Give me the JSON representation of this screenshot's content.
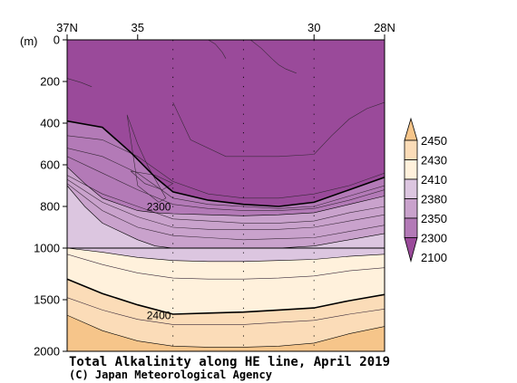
{
  "chart_data": {
    "type": "heatmap",
    "title": "Total Alkalinity along HE line, April 2019",
    "credit": "(C) Japan Meteorological Agency",
    "yunit": "(m)",
    "xlim": [
      37,
      28
    ],
    "x_ticks": [
      "37N",
      "35",
      "30",
      "28N"
    ],
    "x_tick_values": [
      37,
      35,
      30,
      28
    ],
    "station_x": [
      34.0,
      32.0,
      30.0
    ],
    "ylim": [
      0,
      2000
    ],
    "y_ticks": [
      0,
      200,
      400,
      600,
      800,
      1000,
      1500,
      2000
    ],
    "y_ticks_upper": [
      0,
      200,
      400,
      600,
      800,
      1000
    ],
    "y_ticks_lower": [
      1000,
      1500,
      2000
    ],
    "y_break": 1000,
    "colorbar": {
      "labels": [
        "2450",
        "2430",
        "2410",
        "2380",
        "2350",
        "2300",
        "2100"
      ],
      "levels": [
        2100,
        2300,
        2350,
        2380,
        2410,
        2430,
        2450
      ],
      "colors": [
        "#9a4a9a",
        "#b37ab7",
        "#c9a2cc",
        "#dcc6e0",
        "#fff1dc",
        "#fbdcb8",
        "#f6c58a"
      ]
    },
    "contour_labels": [
      {
        "text": "2300",
        "x": 34.4,
        "y": 800
      },
      {
        "text": "2400",
        "x": 34.4,
        "y": 1650
      }
    ],
    "bands": [
      {
        "level": 2300,
        "color": "#9a4a9a",
        "x": [
          37,
          36,
          35.2,
          34.5,
          34,
          33,
          32,
          31,
          30,
          29,
          28
        ],
        "y": [
          390,
          420,
          540,
          660,
          730,
          770,
          790,
          800,
          780,
          720,
          660
        ]
      },
      {
        "level": 2350,
        "color": "#b37ab7",
        "x": [
          37,
          36.5,
          36,
          35,
          34.5,
          34,
          33,
          32,
          31,
          30,
          29,
          28
        ],
        "y": [
          610,
          690,
          760,
          820,
          830,
          835,
          840,
          845,
          840,
          830,
          790,
          750
        ]
      },
      {
        "level": 2380,
        "color": "#c9a2cc",
        "x": [
          37,
          36.5,
          36,
          35,
          34.5,
          34,
          33,
          32,
          31,
          30,
          29,
          28
        ],
        "y": [
          700,
          800,
          880,
          960,
          990,
          1000,
          1000,
          1000,
          1000,
          990,
          960,
          930
        ]
      },
      {
        "level": 2410,
        "color": "#dcc6e0",
        "x": [
          37,
          36,
          35,
          34,
          33,
          32,
          31,
          30,
          29,
          28
        ],
        "y": [
          1000,
          1040,
          1090,
          1120,
          1130,
          1130,
          1120,
          1110,
          1080,
          1060
        ]
      },
      {
        "level": 2430,
        "color": "#fff1dc",
        "x": [
          37,
          36,
          35,
          34,
          33,
          32,
          31,
          30,
          29,
          28
        ],
        "y": [
          1300,
          1440,
          1550,
          1640,
          1630,
          1620,
          1600,
          1580,
          1510,
          1450
        ]
      },
      {
        "level": 2450,
        "color": "#fbdcb8",
        "x": [
          37,
          36,
          35,
          34,
          33,
          32,
          31,
          30,
          29,
          28
        ],
        "y": [
          1650,
          1800,
          1900,
          1950,
          1960,
          1960,
          1950,
          1920,
          1830,
          1760
        ]
      }
    ],
    "inner_contours": [
      {
        "x": [
          37,
          36,
          35,
          34,
          33,
          32,
          31,
          30,
          29,
          28
        ],
        "y": [
          460,
          480,
          560,
          680,
          740,
          760,
          760,
          740,
          700,
          640
        ]
      },
      {
        "x": [
          37,
          36,
          35,
          34,
          33,
          32,
          31,
          30,
          29,
          28
        ],
        "y": [
          520,
          560,
          640,
          760,
          790,
          800,
          810,
          800,
          750,
          700
        ]
      },
      {
        "x": [
          37,
          36,
          35,
          34,
          33,
          32,
          31,
          30,
          29,
          28
        ],
        "y": [
          560,
          640,
          720,
          790,
          810,
          820,
          820,
          810,
          770,
          720
        ]
      },
      {
        "x": [
          37,
          36,
          35,
          34,
          33,
          32,
          31,
          30,
          29,
          28
        ],
        "y": [
          650,
          740,
          800,
          860,
          870,
          880,
          880,
          870,
          830,
          800
        ]
      },
      {
        "x": [
          37,
          36,
          35,
          34,
          33,
          32,
          31,
          30,
          29,
          28
        ],
        "y": [
          670,
          780,
          850,
          900,
          910,
          910,
          910,
          900,
          870,
          840
        ]
      },
      {
        "x": [
          37,
          36,
          35,
          34,
          33,
          32,
          31,
          30,
          29,
          28
        ],
        "y": [
          690,
          820,
          900,
          940,
          950,
          960,
          955,
          950,
          920,
          890
        ]
      },
      {
        "x": [
          37,
          36,
          35,
          34,
          33,
          32,
          31,
          30,
          29,
          28
        ],
        "y": [
          1060,
          1160,
          1240,
          1290,
          1300,
          1300,
          1290,
          1270,
          1220,
          1190
        ]
      },
      {
        "x": [
          37,
          36,
          35,
          34,
          33,
          32,
          31,
          30,
          29,
          28
        ],
        "y": [
          1480,
          1600,
          1690,
          1740,
          1740,
          1740,
          1720,
          1700,
          1640,
          1590
        ]
      },
      {
        "x": [
          37,
          36.6,
          36.3
        ],
        "y": [
          185,
          205,
          225
        ]
      },
      {
        "x": [
          35.2,
          34.8,
          34.3,
          34.0,
          34.5,
          35.2
        ],
        "y": [
          630,
          690,
          720,
          690,
          650,
          630
        ]
      },
      {
        "x": [
          35.3,
          35.0,
          34.7,
          34.4,
          34.2,
          34.4,
          35.0,
          35.3
        ],
        "y": [
          360,
          500,
          610,
          700,
          760,
          780,
          700,
          360
        ]
      },
      {
        "x": [
          34.0,
          33.5,
          32.5,
          31.0,
          30.0,
          29.5,
          29.0,
          28.5,
          28.0
        ],
        "y": [
          300,
          480,
          560,
          560,
          550,
          460,
          380,
          330,
          300
        ]
      },
      {
        "x": [
          31.8,
          31.5,
          31.2,
          31.0,
          30.8,
          30.5
        ],
        "y": [
          0,
          40,
          90,
          120,
          140,
          160
        ]
      },
      {
        "x": [
          33.0,
          32.8,
          32.6,
          32.5
        ],
        "y": [
          0,
          20,
          60,
          90
        ]
      }
    ]
  }
}
